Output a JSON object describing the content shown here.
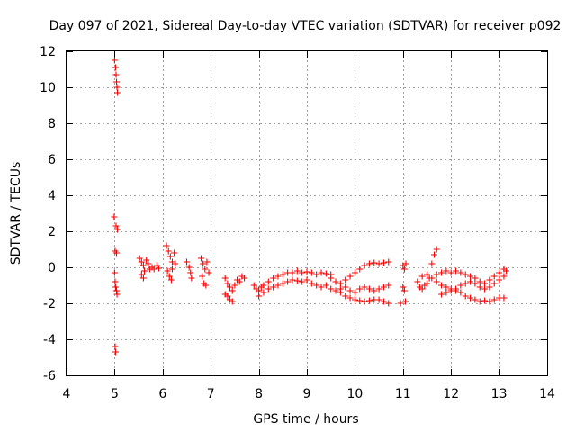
{
  "chart_data": {
    "type": "scatter",
    "title": "Day 097 of 2021, Sidereal Day-to-day VTEC variation (SDTVAR) for receiver p092",
    "xlabel": "GPS time / hours",
    "ylabel": "SDTVAR / TECUs",
    "xlim": [
      4,
      14
    ],
    "ylim": [
      -6,
      12
    ],
    "xticks": [
      4,
      5,
      6,
      7,
      8,
      9,
      10,
      11,
      12,
      13,
      14
    ],
    "yticks": [
      -6,
      -4,
      -2,
      0,
      2,
      4,
      6,
      8,
      10,
      12
    ],
    "grid": true,
    "marker": "+",
    "colors": {
      "series": "#ff0000",
      "grid": "#a0a0a0",
      "axis": "#000000"
    },
    "series": [
      {
        "name": "SDTVAR",
        "points": [
          [
            5.0,
            11.5
          ],
          [
            5.02,
            11.1
          ],
          [
            5.03,
            10.7
          ],
          [
            5.04,
            10.3
          ],
          [
            5.05,
            10.0
          ],
          [
            5.06,
            9.7
          ],
          [
            4.99,
            2.8
          ],
          [
            5.03,
            2.3
          ],
          [
            5.06,
            2.1
          ],
          [
            5.01,
            0.9
          ],
          [
            5.04,
            0.8
          ],
          [
            5.0,
            -0.3
          ],
          [
            5.01,
            -0.8
          ],
          [
            5.02,
            -1.1
          ],
          [
            5.04,
            -1.3
          ],
          [
            5.05,
            -1.5
          ],
          [
            5.01,
            -4.4
          ],
          [
            5.02,
            -4.7
          ],
          [
            5.52,
            0.5
          ],
          [
            5.56,
            0.3
          ],
          [
            5.6,
            0.1
          ],
          [
            5.62,
            -0.2
          ],
          [
            5.66,
            0.4
          ],
          [
            5.7,
            0.2
          ],
          [
            5.73,
            -0.1
          ],
          [
            5.78,
            0.0
          ],
          [
            5.82,
            -0.1
          ],
          [
            5.88,
            0.1
          ],
          [
            5.92,
            -0.05
          ],
          [
            5.56,
            -0.4
          ],
          [
            5.6,
            -0.6
          ],
          [
            6.08,
            1.2
          ],
          [
            6.12,
            0.9
          ],
          [
            6.16,
            0.6
          ],
          [
            6.2,
            0.3
          ],
          [
            6.24,
            0.8
          ],
          [
            6.1,
            -0.2
          ],
          [
            6.14,
            -0.5
          ],
          [
            6.2,
            -0.1
          ],
          [
            6.26,
            0.2
          ],
          [
            6.18,
            -0.7
          ],
          [
            6.5,
            0.3
          ],
          [
            6.55,
            0.0
          ],
          [
            6.58,
            -0.3
          ],
          [
            6.6,
            -0.6
          ],
          [
            6.8,
            0.5
          ],
          [
            6.84,
            0.2
          ],
          [
            6.88,
            -0.1
          ],
          [
            6.92,
            0.3
          ],
          [
            6.82,
            -0.5
          ],
          [
            6.86,
            -0.9
          ],
          [
            6.9,
            -1.0
          ],
          [
            6.96,
            -0.3
          ],
          [
            7.3,
            -0.6
          ],
          [
            7.35,
            -0.9
          ],
          [
            7.4,
            -1.1
          ],
          [
            7.45,
            -1.3
          ],
          [
            7.5,
            -1.0
          ],
          [
            7.55,
            -0.7
          ],
          [
            7.6,
            -0.8
          ],
          [
            7.65,
            -0.5
          ],
          [
            7.7,
            -0.6
          ],
          [
            7.3,
            -1.5
          ],
          [
            7.35,
            -1.6
          ],
          [
            7.4,
            -1.8
          ],
          [
            7.45,
            -1.9
          ],
          [
            7.9,
            -1.0
          ],
          [
            7.95,
            -1.2
          ],
          [
            8.0,
            -1.3
          ],
          [
            8.05,
            -1.1
          ],
          [
            8.1,
            -1.0
          ],
          [
            8.2,
            -0.8
          ],
          [
            8.3,
            -0.6
          ],
          [
            8.4,
            -0.5
          ],
          [
            8.5,
            -0.4
          ],
          [
            8.6,
            -0.3
          ],
          [
            8.7,
            -0.3
          ],
          [
            8.8,
            -0.2
          ],
          [
            8.9,
            -0.3
          ],
          [
            9.0,
            -0.25
          ],
          [
            9.1,
            -0.3
          ],
          [
            9.2,
            -0.4
          ],
          [
            9.3,
            -0.3
          ],
          [
            9.4,
            -0.35
          ],
          [
            9.5,
            -0.4
          ],
          [
            8.0,
            -1.6
          ],
          [
            8.1,
            -1.4
          ],
          [
            8.2,
            -1.2
          ],
          [
            8.3,
            -1.1
          ],
          [
            8.4,
            -1.0
          ],
          [
            8.5,
            -0.9
          ],
          [
            8.6,
            -0.8
          ],
          [
            8.7,
            -0.7
          ],
          [
            8.8,
            -0.75
          ],
          [
            8.9,
            -0.8
          ],
          [
            9.0,
            -0.7
          ],
          [
            9.1,
            -0.9
          ],
          [
            9.2,
            -1.0
          ],
          [
            9.3,
            -1.1
          ],
          [
            9.4,
            -1.0
          ],
          [
            9.5,
            -1.2
          ],
          [
            9.6,
            -1.3
          ],
          [
            9.7,
            -1.4
          ],
          [
            9.8,
            -1.6
          ],
          [
            9.9,
            -1.7
          ],
          [
            10.0,
            -1.8
          ],
          [
            10.1,
            -1.85
          ],
          [
            10.2,
            -1.9
          ],
          [
            10.3,
            -1.85
          ],
          [
            10.4,
            -1.8
          ],
          [
            10.5,
            -1.8
          ],
          [
            10.6,
            -1.9
          ],
          [
            10.7,
            -2.0
          ],
          [
            9.5,
            -0.6
          ],
          [
            9.6,
            -0.8
          ],
          [
            9.7,
            -0.9
          ],
          [
            9.8,
            -0.7
          ],
          [
            9.9,
            -0.5
          ],
          [
            10.0,
            -0.3
          ],
          [
            10.1,
            -0.1
          ],
          [
            10.2,
            0.1
          ],
          [
            10.3,
            0.2
          ],
          [
            10.4,
            0.25
          ],
          [
            10.5,
            0.2
          ],
          [
            10.6,
            0.25
          ],
          [
            10.7,
            0.3
          ],
          [
            9.7,
            -1.2
          ],
          [
            9.8,
            -1.1
          ],
          [
            9.9,
            -1.3
          ],
          [
            10.0,
            -1.4
          ],
          [
            10.1,
            -1.2
          ],
          [
            10.2,
            -1.1
          ],
          [
            10.3,
            -1.2
          ],
          [
            10.4,
            -1.3
          ],
          [
            10.5,
            -1.2
          ],
          [
            10.6,
            -1.1
          ],
          [
            10.7,
            -1.0
          ],
          [
            11.0,
            0.1
          ],
          [
            11.03,
            -0.1
          ],
          [
            11.06,
            0.2
          ],
          [
            11.0,
            -1.1
          ],
          [
            11.03,
            -1.3
          ],
          [
            11.05,
            -1.9
          ],
          [
            10.95,
            -2.0
          ],
          [
            11.3,
            -0.8
          ],
          [
            11.35,
            -1.1
          ],
          [
            11.4,
            -1.2
          ],
          [
            11.45,
            -1.0
          ],
          [
            11.5,
            -0.9
          ],
          [
            11.55,
            -0.6
          ],
          [
            11.6,
            0.2
          ],
          [
            11.65,
            0.7
          ],
          [
            11.7,
            1.0
          ],
          [
            11.7,
            -0.4
          ],
          [
            11.8,
            -0.3
          ],
          [
            11.9,
            -0.2
          ],
          [
            12.0,
            -0.3
          ],
          [
            12.1,
            -0.2
          ],
          [
            12.2,
            -0.3
          ],
          [
            12.3,
            -0.4
          ],
          [
            12.4,
            -0.5
          ],
          [
            12.5,
            -0.6
          ],
          [
            12.6,
            -0.8
          ],
          [
            12.7,
            -0.9
          ],
          [
            12.8,
            -0.7
          ],
          [
            12.9,
            -0.5
          ],
          [
            13.0,
            -0.3
          ],
          [
            13.1,
            -0.1
          ],
          [
            11.4,
            -0.5
          ],
          [
            11.5,
            -0.4
          ],
          [
            11.6,
            -0.6
          ],
          [
            11.7,
            -0.8
          ],
          [
            11.8,
            -1.0
          ],
          [
            11.9,
            -1.1
          ],
          [
            12.0,
            -1.2
          ],
          [
            12.1,
            -1.3
          ],
          [
            12.2,
            -1.4
          ],
          [
            12.3,
            -1.6
          ],
          [
            12.4,
            -1.7
          ],
          [
            12.5,
            -1.8
          ],
          [
            12.6,
            -1.9
          ],
          [
            12.7,
            -1.85
          ],
          [
            12.8,
            -1.9
          ],
          [
            12.9,
            -1.8
          ],
          [
            13.0,
            -1.7
          ],
          [
            13.1,
            -1.7
          ],
          [
            11.8,
            -1.5
          ],
          [
            11.9,
            -1.4
          ],
          [
            12.0,
            -1.3
          ],
          [
            12.1,
            -1.2
          ],
          [
            12.2,
            -1.0
          ],
          [
            12.3,
            -0.9
          ],
          [
            12.4,
            -0.8
          ],
          [
            12.5,
            -0.9
          ],
          [
            12.6,
            -1.1
          ],
          [
            12.7,
            -1.2
          ],
          [
            12.8,
            -1.1
          ],
          [
            12.9,
            -0.9
          ],
          [
            13.0,
            -0.7
          ],
          [
            13.1,
            -0.5
          ],
          [
            13.15,
            -0.2
          ]
        ]
      }
    ]
  }
}
